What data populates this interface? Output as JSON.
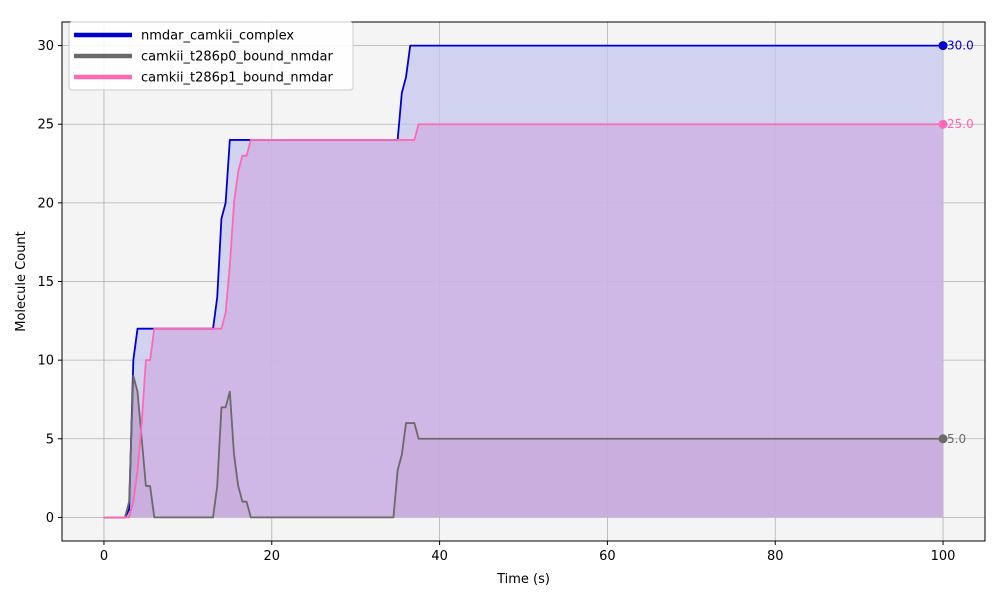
{
  "chart_data": {
    "type": "area",
    "title": "",
    "xlabel": "Time (s)",
    "ylabel": "Molecule Count",
    "xlim": [
      -5,
      105
    ],
    "ylim": [
      -1.5,
      31.5
    ],
    "xticks": [
      0,
      20,
      40,
      60,
      80,
      100
    ],
    "yticks": [
      0,
      5,
      10,
      15,
      20,
      25,
      30
    ],
    "xtick_labels": [
      "0",
      "20",
      "40",
      "60",
      "80",
      "100"
    ],
    "ytick_labels": [
      "0",
      "5",
      "10",
      "15",
      "20",
      "25",
      "30"
    ],
    "grid": true,
    "legend_position": "top-left",
    "background": "#f4f4f4",
    "series": [
      {
        "name": "nmdar_camkii_complex",
        "color": "#0000cc",
        "fill": "#c4c4ee",
        "end_value": 30,
        "end_label": "30.0",
        "points": [
          [
            0,
            0
          ],
          [
            2.5,
            0
          ],
          [
            3,
            0.5
          ],
          [
            3.5,
            10
          ],
          [
            4,
            12
          ],
          [
            13,
            12
          ],
          [
            13.5,
            14
          ],
          [
            14,
            19
          ],
          [
            14.5,
            20
          ],
          [
            15,
            24
          ],
          [
            35,
            24
          ],
          [
            35.5,
            27
          ],
          [
            36,
            28
          ],
          [
            36.5,
            30
          ],
          [
            100,
            30
          ]
        ]
      },
      {
        "name": "camkii_t286p0_bound_nmdar",
        "color": "#6a6a6a",
        "fill": "#b89cc8",
        "end_value": 5,
        "end_label": "5.0",
        "points": [
          [
            0,
            0
          ],
          [
            2.5,
            0
          ],
          [
            3,
            1
          ],
          [
            3.5,
            9
          ],
          [
            4,
            8
          ],
          [
            4.5,
            5
          ],
          [
            5,
            2
          ],
          [
            5.5,
            2
          ],
          [
            6,
            0
          ],
          [
            13,
            0
          ],
          [
            13.5,
            2
          ],
          [
            14,
            7
          ],
          [
            14.5,
            7
          ],
          [
            15,
            8
          ],
          [
            15.5,
            4
          ],
          [
            16,
            2
          ],
          [
            16.5,
            1
          ],
          [
            17,
            1
          ],
          [
            17.5,
            0
          ],
          [
            34.5,
            0
          ],
          [
            35,
            3
          ],
          [
            35.5,
            4
          ],
          [
            36,
            6
          ],
          [
            37,
            6
          ],
          [
            37.5,
            5
          ],
          [
            100,
            5
          ]
        ]
      },
      {
        "name": "camkii_t286p1_bound_nmdar",
        "color": "#ff69b4",
        "fill": "#ceaee0",
        "end_value": 25,
        "end_label": "25.0",
        "points": [
          [
            0,
            0
          ],
          [
            2.5,
            0
          ],
          [
            3,
            0
          ],
          [
            3.5,
            1
          ],
          [
            4,
            3
          ],
          [
            4.5,
            6
          ],
          [
            5,
            10
          ],
          [
            5.5,
            10
          ],
          [
            6,
            12
          ],
          [
            14,
            12
          ],
          [
            14.5,
            13
          ],
          [
            15,
            16
          ],
          [
            15.5,
            20
          ],
          [
            16,
            22
          ],
          [
            16.5,
            23
          ],
          [
            17,
            23
          ],
          [
            17.5,
            24
          ],
          [
            37,
            24
          ],
          [
            37.5,
            25
          ],
          [
            100,
            25
          ]
        ]
      }
    ]
  }
}
